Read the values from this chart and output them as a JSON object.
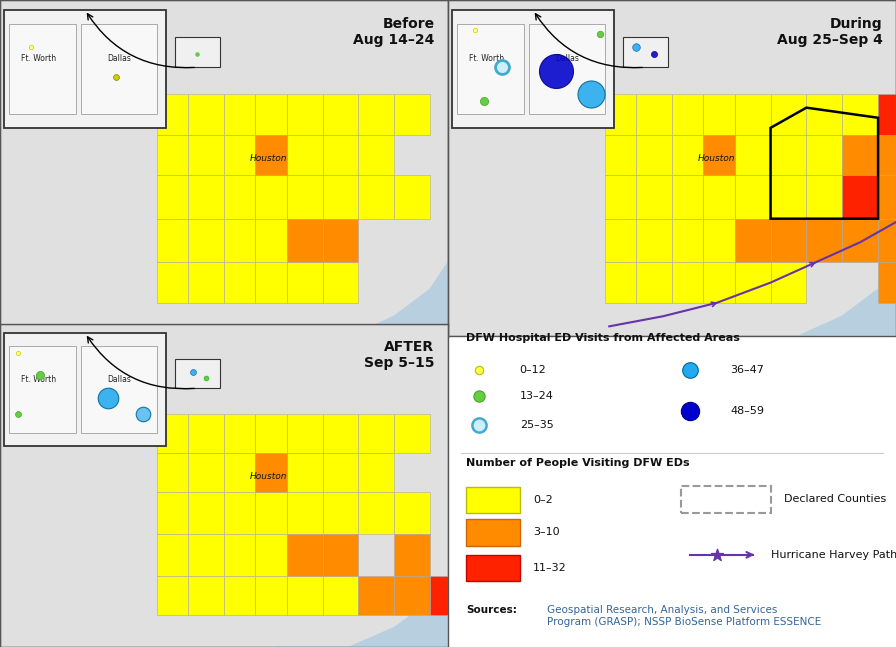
{
  "title_before": "Before\nAug 14–24",
  "title_during": "During\nAug 25–Sep 4",
  "title_after": "AFTER\nSep 5–15",
  "bg_color": "#ffffff",
  "map_bg": "#e0e0e0",
  "water_color": "#b8cfe0",
  "county_fill_yellow": "#ffff00",
  "county_fill_orange": "#ff8c00",
  "county_fill_red": "#ff2200",
  "county_border": "#aaaaaa",
  "circle_yellow": "#ffff88",
  "circle_green": "#66cc44",
  "circle_cyan_light": "#aaddff",
  "circle_cyan": "#22aaee",
  "circle_blue": "#0000cc",
  "harvey_path_color": "#6633aa",
  "sources_color": "#336699",
  "legend_title1": "DFW Hospital ED Visits from Affected Areas",
  "legend_title2": "Number of People Visiting DFW EDs",
  "ft_worth_label": "Ft. Worth",
  "dallas_label": "Dallas",
  "houston_label": "Houston"
}
